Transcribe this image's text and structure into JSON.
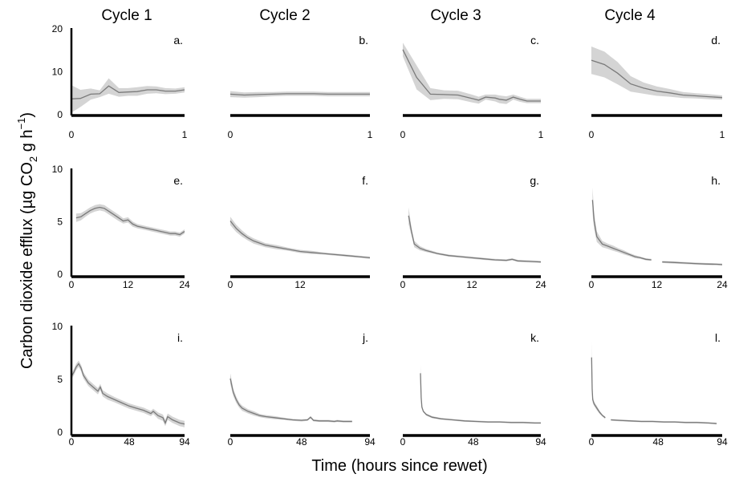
{
  "figure": {
    "ylabel_main": "Carbon dioxide efflux (",
    "ylabel_mu": "µ",
    "ylabel_g": "g CO",
    "ylabel_sub": "2",
    "ylabel_rest": " g h",
    "ylabel_sup": "−1",
    "ylabel_close": ")",
    "xlabel": "Time (hours since rewet)"
  },
  "columns": [
    "Cycle 1",
    "Cycle 2",
    "Cycle 3",
    "Cycle 4"
  ],
  "colors": {
    "line": "#7a7a7a",
    "band": "#d4d4d4",
    "axis": "#000000"
  },
  "chart_data": [
    {
      "type": "area",
      "label": "a.",
      "xlim": [
        0,
        1
      ],
      "ylim": [
        0,
        20
      ],
      "xticks": [
        0,
        1
      ],
      "yticks": [
        0,
        10,
        20
      ],
      "x": [
        0,
        0.08,
        0.17,
        0.25,
        0.33,
        0.42,
        0.5,
        0.58,
        0.67,
        0.75,
        0.83,
        0.92,
        1
      ],
      "y": [
        3.5,
        3.6,
        4.6,
        4.7,
        6.5,
        5.0,
        5.1,
        5.2,
        5.6,
        5.6,
        5.3,
        5.3,
        5.6
      ],
      "band": [
        3.2,
        2.0,
        1.3,
        0.8,
        1.8,
        1.0,
        0.9,
        1.0,
        0.9,
        0.8,
        0.7,
        0.6,
        0.6
      ]
    },
    {
      "type": "area",
      "label": "b.",
      "xlim": [
        0,
        1
      ],
      "ylim": [
        0,
        20
      ],
      "xticks": [
        0,
        1
      ],
      "yticks": [],
      "x": [
        0,
        0.1,
        0.2,
        0.3,
        0.4,
        0.5,
        0.6,
        0.7,
        0.8,
        0.9,
        1
      ],
      "y": [
        4.6,
        4.4,
        4.5,
        4.6,
        4.7,
        4.7,
        4.7,
        4.6,
        4.6,
        4.6,
        4.6
      ],
      "band": [
        0.7,
        0.6,
        0.6,
        0.5,
        0.5,
        0.5,
        0.5,
        0.5,
        0.5,
        0.5,
        0.5
      ]
    },
    {
      "type": "area",
      "label": "c.",
      "xlim": [
        0,
        1
      ],
      "ylim": [
        0,
        20
      ],
      "xticks": [
        0,
        1
      ],
      "yticks": [],
      "x": [
        0,
        0.1,
        0.2,
        0.3,
        0.4,
        0.5,
        0.55,
        0.6,
        0.67,
        0.7,
        0.75,
        0.8,
        0.85,
        0.9,
        1
      ],
      "y": [
        15.0,
        8.5,
        4.6,
        4.5,
        4.4,
        3.6,
        3.2,
        3.9,
        3.7,
        3.4,
        3.2,
        3.9,
        3.4,
        3.0,
        3.0
      ],
      "band": [
        1.6,
        2.8,
        1.4,
        1.0,
        1.0,
        0.9,
        0.8,
        0.6,
        0.8,
        0.9,
        0.9,
        0.6,
        0.6,
        0.5,
        0.5
      ]
    },
    {
      "type": "area",
      "label": "d.",
      "xlim": [
        0,
        1
      ],
      "ylim": [
        0,
        20
      ],
      "xticks": [
        0,
        1
      ],
      "yticks": [],
      "x": [
        0,
        0.1,
        0.2,
        0.3,
        0.4,
        0.5,
        0.6,
        0.7,
        0.8,
        0.9,
        1
      ],
      "y": [
        12.5,
        11.5,
        9.5,
        7.0,
        6.0,
        5.3,
        4.9,
        4.4,
        4.2,
        4.0,
        3.8
      ],
      "band": [
        3.2,
        3.0,
        2.6,
        1.8,
        1.3,
        1.1,
        0.9,
        0.7,
        0.6,
        0.6,
        0.5
      ]
    },
    {
      "type": "area",
      "label": "e.",
      "xlim": [
        0,
        24
      ],
      "ylim": [
        0,
        10
      ],
      "xticks": [
        0,
        12,
        24
      ],
      "yticks": [
        0,
        5,
        10
      ],
      "x": [
        1,
        2,
        3,
        4,
        5,
        6,
        7,
        8,
        9,
        10,
        11,
        12,
        13,
        14,
        15,
        16,
        17,
        18,
        19,
        20,
        21,
        22,
        23,
        24
      ],
      "y": [
        5.3,
        5.4,
        5.7,
        6.0,
        6.2,
        6.3,
        6.2,
        5.9,
        5.6,
        5.3,
        5.0,
        5.1,
        4.7,
        4.5,
        4.4,
        4.3,
        4.2,
        4.1,
        4.0,
        3.9,
        3.8,
        3.8,
        3.7,
        4.0
      ],
      "band": [
        0.4,
        0.35,
        0.3,
        0.3,
        0.3,
        0.3,
        0.3,
        0.3,
        0.3,
        0.3,
        0.25,
        0.25,
        0.25,
        0.2,
        0.2,
        0.2,
        0.2,
        0.2,
        0.2,
        0.2,
        0.2,
        0.2,
        0.2,
        0.2
      ]
    },
    {
      "type": "area",
      "label": "f.",
      "xlim": [
        0,
        24
      ],
      "ylim": [
        0,
        10
      ],
      "xticks": [
        0,
        12
      ],
      "yticks": [],
      "x": [
        0,
        1,
        2,
        3,
        4,
        6,
        8,
        10,
        12,
        14,
        16,
        18,
        20,
        22,
        24
      ],
      "y": [
        5.0,
        4.3,
        3.8,
        3.4,
        3.1,
        2.7,
        2.5,
        2.3,
        2.1,
        2.0,
        1.9,
        1.8,
        1.7,
        1.6,
        1.5
      ],
      "band": [
        0.4,
        0.35,
        0.3,
        0.25,
        0.25,
        0.2,
        0.2,
        0.15,
        0.15,
        0.15,
        0.1,
        0.1,
        0.1,
        0.1,
        0.1
      ]
    },
    {
      "type": "area",
      "label": "g.",
      "xlim": [
        0,
        24
      ],
      "ylim": [
        0,
        10
      ],
      "xticks": [
        0,
        12,
        24
      ],
      "yticks": [],
      "x": [
        1,
        1.5,
        2,
        3,
        4,
        6,
        8,
        10,
        12,
        14,
        16,
        18,
        19,
        20,
        22,
        24
      ],
      "y": [
        5.5,
        4.0,
        2.8,
        2.4,
        2.2,
        1.9,
        1.7,
        1.6,
        1.5,
        1.4,
        1.3,
        1.25,
        1.35,
        1.2,
        1.15,
        1.1
      ],
      "band": [
        0.8,
        0.4,
        0.3,
        0.2,
        0.15,
        0.1,
        0.1,
        0.1,
        0.1,
        0.1,
        0.1,
        0.1,
        0.1,
        0.1,
        0.1,
        0.1
      ]
    },
    {
      "type": "area",
      "label": "h.",
      "xlim": [
        0,
        24
      ],
      "ylim": [
        0,
        10
      ],
      "xticks": [
        0,
        12,
        24
      ],
      "yticks": [],
      "x": [
        0.2,
        0.5,
        1,
        2,
        3,
        4,
        5,
        6,
        7,
        8,
        9,
        10,
        11,
        null,
        13,
        15,
        17,
        19,
        21,
        23,
        24
      ],
      "y": [
        7.0,
        5.0,
        3.5,
        2.8,
        2.6,
        2.4,
        2.2,
        2.0,
        1.8,
        1.6,
        1.5,
        1.35,
        1.3,
        null,
        1.1,
        1.05,
        1.0,
        0.95,
        0.9,
        0.88,
        0.85
      ],
      "band": [
        1.2,
        0.8,
        0.5,
        0.3,
        0.25,
        0.25,
        0.2,
        0.2,
        0.15,
        0.15,
        0.1,
        0.1,
        0.1,
        null,
        0.1,
        0.1,
        0.1,
        0.1,
        0.1,
        0.1,
        0.1
      ]
    },
    {
      "type": "area",
      "label": "i.",
      "xlim": [
        0,
        94
      ],
      "ylim": [
        0,
        10
      ],
      "xticks": [
        0,
        48,
        94
      ],
      "yticks": [
        0,
        5,
        10
      ],
      "x": [
        0,
        2,
        4,
        6,
        8,
        10,
        14,
        18,
        22,
        24,
        26,
        30,
        36,
        42,
        48,
        54,
        60,
        66,
        68,
        72,
        76,
        78,
        80,
        84,
        90,
        94
      ],
      "y": [
        5.2,
        5.6,
        6.1,
        6.4,
        6.0,
        5.3,
        4.6,
        4.2,
        3.8,
        4.2,
        3.6,
        3.3,
        3.0,
        2.7,
        2.4,
        2.2,
        2.0,
        1.7,
        1.9,
        1.5,
        1.3,
        0.8,
        1.4,
        1.1,
        0.8,
        0.7
      ],
      "band": [
        0.3,
        0.3,
        0.3,
        0.3,
        0.3,
        0.3,
        0.3,
        0.3,
        0.3,
        0.3,
        0.3,
        0.3,
        0.25,
        0.25,
        0.25,
        0.25,
        0.25,
        0.25,
        0.25,
        0.3,
        0.3,
        0.3,
        0.3,
        0.3,
        0.3,
        0.3
      ]
    },
    {
      "type": "area",
      "label": "j.",
      "xlim": [
        0,
        94
      ],
      "ylim": [
        0,
        10
      ],
      "xticks": [
        0,
        48,
        94
      ],
      "yticks": [],
      "x": [
        0,
        2,
        4,
        6,
        8,
        12,
        16,
        20,
        24,
        30,
        36,
        42,
        48,
        52,
        54,
        56,
        60,
        66,
        70,
        72,
        76,
        82
      ],
      "y": [
        5.0,
        3.7,
        3.0,
        2.5,
        2.2,
        1.9,
        1.7,
        1.5,
        1.4,
        1.3,
        1.2,
        1.1,
        1.05,
        1.1,
        1.35,
        1.05,
        1.0,
        1.0,
        0.95,
        1.0,
        0.95,
        0.95
      ],
      "band": [
        0.5,
        0.35,
        0.3,
        0.25,
        0.25,
        0.2,
        0.2,
        0.15,
        0.15,
        0.15,
        0.1,
        0.1,
        0.1,
        0.1,
        0.1,
        0.1,
        0.1,
        0.1,
        0.1,
        0.1,
        0.1,
        0.1
      ]
    },
    {
      "type": "area",
      "label": "k.",
      "xlim": [
        0,
        94
      ],
      "ylim": [
        0,
        10
      ],
      "xticks": [
        0,
        48,
        94
      ],
      "yticks": [],
      "x": [
        12,
        12.5,
        13,
        14,
        16,
        20,
        26,
        34,
        42,
        50,
        58,
        66,
        74,
        82,
        90,
        94
      ],
      "y": [
        5.5,
        3.2,
        2.3,
        1.9,
        1.6,
        1.35,
        1.2,
        1.1,
        1.0,
        0.95,
        0.9,
        0.9,
        0.85,
        0.85,
        0.8,
        0.8
      ],
      "band": [
        0.8,
        0.3,
        0.2,
        0.1,
        0.1,
        0.1,
        0.08,
        0.08,
        0.08,
        0.08,
        0.08,
        0.08,
        0.08,
        0.08,
        0.08,
        0.08
      ]
    },
    {
      "type": "area",
      "label": "l.",
      "xlim": [
        0,
        94
      ],
      "ylim": [
        0,
        10
      ],
      "xticks": [
        0,
        48,
        94
      ],
      "yticks": [],
      "x": [
        0.2,
        0.6,
        1,
        2,
        4,
        6,
        8,
        10,
        null,
        14,
        20,
        28,
        36,
        44,
        52,
        60,
        68,
        76,
        84,
        90
      ],
      "y": [
        7.0,
        4.0,
        3.0,
        2.6,
        2.2,
        1.8,
        1.5,
        1.3,
        null,
        1.1,
        1.05,
        1.0,
        0.95,
        0.95,
        0.9,
        0.9,
        0.85,
        0.85,
        0.8,
        0.75
      ],
      "band": [
        1.5,
        0.6,
        0.3,
        0.2,
        0.2,
        0.15,
        0.1,
        0.1,
        null,
        0.08,
        0.08,
        0.08,
        0.08,
        0.08,
        0.08,
        0.08,
        0.08,
        0.08,
        0.08,
        0.08
      ]
    }
  ]
}
